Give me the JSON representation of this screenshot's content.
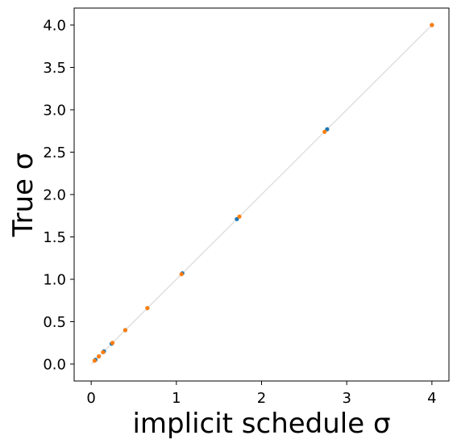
{
  "chart_data": {
    "type": "scatter",
    "title": "",
    "xlabel": "implicit schedule σ",
    "ylabel": "True σ",
    "xlim": [
      -0.2,
      4.2
    ],
    "ylim": [
      -0.2,
      4.2
    ],
    "xticks": [
      0,
      1,
      2,
      3,
      4
    ],
    "xtick_labels": [
      "0",
      "1",
      "2",
      "3",
      "4"
    ],
    "yticks": [
      0.0,
      0.5,
      1.0,
      1.5,
      2.0,
      2.5,
      3.0,
      3.5,
      4.0
    ],
    "ytick_labels": [
      "0.0",
      "0.5",
      "1.0",
      "1.5",
      "2.0",
      "2.5",
      "3.0",
      "3.5",
      "4.0"
    ],
    "grid": false,
    "reference_line": {
      "x": [
        0,
        4
      ],
      "y": [
        0,
        4
      ],
      "color": "#e0e0e0"
    },
    "series": [
      {
        "color": "#1f77b4",
        "points": [
          [
            0.05,
            0.05
          ],
          [
            0.09,
            0.09
          ],
          [
            0.15,
            0.15
          ],
          [
            0.24,
            0.24
          ],
          [
            0.4,
            0.4
          ],
          [
            0.66,
            0.66
          ],
          [
            1.07,
            1.07
          ],
          [
            1.71,
            1.71
          ],
          [
            2.77,
            2.77
          ],
          [
            4.0,
            4.0
          ]
        ]
      },
      {
        "color": "#ff7f0e",
        "points": [
          [
            0.04,
            0.04
          ],
          [
            0.09,
            0.09
          ],
          [
            0.14,
            0.14
          ],
          [
            0.25,
            0.25
          ],
          [
            0.4,
            0.4
          ],
          [
            0.66,
            0.66
          ],
          [
            1.06,
            1.06
          ],
          [
            1.74,
            1.74
          ],
          [
            2.74,
            2.74
          ],
          [
            4.0,
            4.0
          ]
        ]
      }
    ]
  }
}
